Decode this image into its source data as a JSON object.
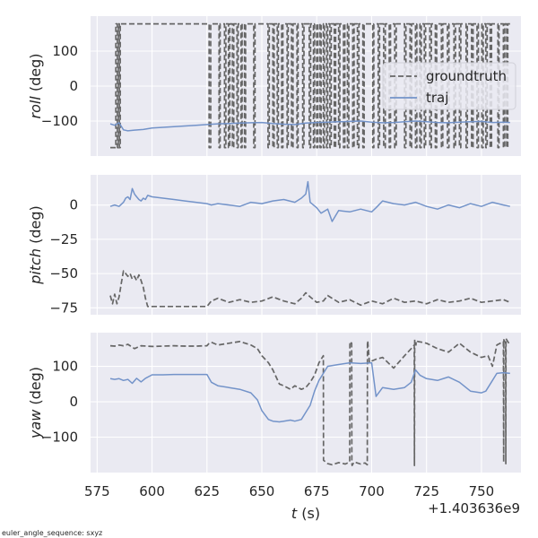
{
  "chart_data": {
    "type": "line",
    "colors": {
      "groundtruth": "#666666",
      "traj": "#7393c9",
      "panel_bg": "#eaeaf2",
      "grid": "#ffffff"
    },
    "shared_x": {
      "label_var": "t",
      "label_unit": "(s)",
      "offset_text": "+1.403636e9",
      "xlim": [
        572,
        768
      ],
      "ticks": [
        575,
        600,
        625,
        650,
        675,
        700,
        725,
        750
      ],
      "tick_labels": [
        "575",
        "600",
        "625",
        "650",
        "675",
        "700",
        "725",
        "750"
      ]
    },
    "legend": {
      "position": "right",
      "entries": [
        {
          "name": "groundtruth",
          "style": "dashed"
        },
        {
          "name": "traj",
          "style": "solid"
        }
      ]
    },
    "subplots": [
      {
        "id": "roll",
        "ylabel_var": "roll",
        "ylabel_unit": "(deg)",
        "ylim": [
          -200,
          200
        ],
        "yticks": [
          100,
          0,
          -100
        ],
        "ytick_labels": [
          "100",
          "0",
          "−100"
        ],
        "series": [
          {
            "name": "groundtruth",
            "mode": "wrap",
            "base": -176,
            "switch_times": [
              583.5,
              584.2,
              584.6,
              585.1,
              585.5,
              626.0,
              626.7,
              630.5,
              631.0,
              633.0,
              633.6,
              634.8,
              635.4,
              636.6,
              637.2,
              638.7,
              639.2,
              640.5,
              641.0,
              642.1,
              642.6,
              646.3,
              646.9,
              652.8,
              653.4,
              655.0,
              655.6,
              657.0,
              657.5,
              659.0,
              659.6,
              661.5,
              662.0,
              663.5,
              664.2,
              666.0,
              666.5,
              668.6,
              669.2,
              671.6,
              672.2,
              673.5,
              674.0,
              675.0,
              675.5,
              676.5,
              677.0,
              678.0,
              678.5,
              679.5,
              680.0,
              681.0,
              681.6,
              683.0,
              683.6,
              685.0,
              685.5,
              687.2,
              687.8,
              689.0,
              689.6,
              691.4,
              692.0,
              693.5,
              694.2,
              696.0,
              696.6,
              700.5,
              701.0,
              703.0,
              703.6,
              705.5,
              706.2,
              708.0,
              708.6,
              710.5,
              711.2,
              715.0,
              715.6,
              717.5,
              718.2,
              720.0,
              720.6,
              722.0,
              722.6,
              724.0,
              724.6,
              726.5,
              727.2,
              729.0,
              729.6,
              731.8,
              732.4,
              734.5,
              735.2,
              737.5,
              738.2,
              740.0,
              740.6,
              743.0,
              743.6,
              745.5,
              746.2,
              748.0,
              748.6,
              750.2,
              750.8,
              752.0,
              752.6,
              754.0,
              754.6,
              757.5,
              758.0,
              760.0,
              760.6,
              761.5,
              762.0
            ]
          },
          {
            "name": "traj",
            "x": [
              581,
              583,
              585,
              587,
              589,
              592,
              596,
              600,
              605,
              610,
              615,
              620,
              625,
              630,
              635,
              640,
              645,
              650,
              655,
              660,
              665,
              670,
              675,
              680,
              685,
              690,
              695,
              700,
              705,
              710,
              715,
              720,
              725,
              730,
              735,
              740,
              745,
              750,
              755,
              760,
              763
            ],
            "y": [
              -108,
              -112,
              -105,
              -125,
              -128,
              -126,
              -124,
              -120,
              -118,
              -116,
              -114,
              -112,
              -110,
              -108,
              -107,
              -106,
              -105,
              -104,
              -107,
              -109,
              -110,
              -106,
              -104,
              -103,
              -102,
              -101,
              -100,
              -103,
              -105,
              -104,
              -102,
              -100,
              -102,
              -104,
              -105,
              -103,
              -102,
              -101,
              -104,
              -103,
              -104
            ]
          }
        ]
      },
      {
        "id": "pitch",
        "ylabel_var": "pitch",
        "ylabel_unit": "(deg)",
        "ylim": [
          -80,
          22
        ],
        "yticks": [
          0,
          -25,
          -50,
          -75
        ],
        "ytick_labels": [
          "0",
          "−25",
          "−50",
          "−75"
        ],
        "series": [
          {
            "name": "groundtruth",
            "x": [
              581,
              582,
              583,
              584,
              585,
              586,
              587,
              588,
              589,
              590,
              591,
              592,
              593,
              594,
              595,
              596,
              597,
              598,
              599,
              600,
              605,
              610,
              615,
              620,
              625,
              627,
              630,
              635,
              640,
              645,
              650,
              655,
              660,
              665,
              668,
              670,
              672,
              675,
              678,
              680,
              685,
              690,
              695,
              700,
              705,
              710,
              715,
              720,
              725,
              730,
              735,
              740,
              745,
              750,
              755,
              760,
              763
            ],
            "y": [
              -66,
              -72,
              -65,
              -72,
              -67,
              -57,
              -48,
              -50,
              -52,
              -50,
              -54,
              -52,
              -55,
              -51,
              -55,
              -60,
              -68,
              -74,
              -74,
              -74,
              -74,
              -74,
              -74,
              -74,
              -74,
              -70,
              -68,
              -71,
              -69,
              -71,
              -70,
              -67,
              -70,
              -72,
              -68,
              -64,
              -67,
              -71,
              -70,
              -66,
              -71,
              -69,
              -73,
              -70,
              -72,
              -68,
              -71,
              -70,
              -72,
              -69,
              -71,
              -70,
              -68,
              -71,
              -70,
              -69,
              -71
            ]
          },
          {
            "name": "traj",
            "x": [
              581,
              583,
              585,
              587,
              588,
              589,
              590,
              591,
              592,
              593,
              594,
              595,
              596,
              597,
              598,
              600,
              605,
              610,
              615,
              620,
              625,
              627,
              630,
              635,
              640,
              645,
              650,
              655,
              660,
              665,
              668,
              670,
              671,
              672,
              675,
              677,
              680,
              682,
              685,
              690,
              695,
              700,
              702,
              705,
              710,
              715,
              720,
              725,
              730,
              735,
              740,
              745,
              750,
              755,
              760,
              763
            ],
            "y": [
              -1,
              0,
              -1,
              2,
              5,
              6,
              4,
              12,
              8,
              6,
              4,
              3,
              5,
              4,
              7,
              6,
              5,
              4,
              3,
              2,
              1,
              0,
              1,
              0,
              -1,
              2,
              1,
              3,
              4,
              2,
              5,
              8,
              17,
              2,
              -2,
              -6,
              -3,
              -12,
              -4,
              -5,
              -3,
              -5,
              -2,
              3,
              1,
              0,
              2,
              -1,
              -3,
              0,
              -2,
              1,
              -1,
              2,
              0,
              -1
            ]
          }
        ]
      },
      {
        "id": "yaw",
        "ylabel_var": "yaw",
        "ylabel_unit": "(deg)",
        "ylim": [
          -200,
          195
        ],
        "yticks": [
          100,
          0,
          -100
        ],
        "ytick_labels": [
          "100",
          "0",
          "−100"
        ],
        "series": [
          {
            "name": "groundtruth",
            "x": [
              581,
              583,
              585,
              587,
              589,
              592,
              595,
              600,
              605,
              610,
              615,
              620,
              625,
              626,
              627,
              630,
              635,
              640,
              645,
              648,
              650,
              653,
              655,
              658,
              660,
              663,
              665,
              668,
              670,
              672,
              674,
              676,
              678,
              678.1,
              679,
              680,
              682,
              685,
              688,
              690,
              690.1,
              690.2,
              690.9,
              691,
              691.1,
              692,
              693,
              695,
              697,
              698,
              698.1,
              698.2,
              699,
              700,
              702,
              705,
              710,
              715,
              718,
              719.4,
              719.5,
              719.6,
              720.1,
              720.2,
              720.3,
              721,
              723,
              725,
              730,
              735,
              740,
              745,
              750,
              753,
              755,
              757,
              760,
              760.1,
              760.2,
              761,
              761.1,
              761.2,
              762,
              763
            ],
            "y": [
              158,
              157,
              160,
              158,
              162,
              150,
              158,
              156,
              157,
              158,
              157,
              157,
              158,
              165,
              168,
              160,
              165,
              170,
              160,
              150,
              130,
              110,
              90,
              50,
              45,
              35,
              45,
              35,
              40,
              55,
              75,
              110,
              130,
              -165,
              -170,
              -175,
              -178,
              -172,
              -176,
              -170,
              160,
              170,
              165,
              -175,
              -180,
              -170,
              -172,
              -176,
              -173,
              -178,
              170,
              172,
              110,
              115,
              120,
              125,
              95,
              130,
              150,
              160,
              -180,
              175,
              170,
              160,
              172,
              170,
              168,
              165,
              150,
              140,
              165,
              140,
              125,
              130,
              100,
              160,
              170,
              -170,
              175,
              165,
              -175,
              178,
              170,
              160
            ]
          },
          {
            "name": "traj",
            "x": [
              581,
              583,
              585,
              587,
              589,
              591,
              593,
              595,
              597,
              600,
              605,
              610,
              615,
              620,
              625,
              627,
              630,
              635,
              640,
              645,
              648,
              650,
              653,
              655,
              658,
              660,
              663,
              665,
              668,
              670,
              672,
              674,
              676,
              678,
              680,
              685,
              690,
              695,
              700,
              702,
              705,
              710,
              715,
              718,
              720,
              722,
              725,
              730,
              735,
              740,
              745,
              750,
              752,
              755,
              757,
              760,
              763
            ],
            "y": [
              65,
              63,
              65,
              60,
              63,
              52,
              66,
              56,
              66,
              76,
              76,
              77,
              77,
              77,
              77,
              55,
              45,
              40,
              35,
              25,
              5,
              -25,
              -50,
              -55,
              -57,
              -55,
              -52,
              -55,
              -50,
              -30,
              -10,
              30,
              60,
              80,
              100,
              105,
              110,
              108,
              110,
              15,
              40,
              35,
              40,
              55,
              90,
              75,
              65,
              60,
              70,
              55,
              30,
              25,
              30,
              60,
              80,
              82,
              80
            ]
          }
        ]
      }
    ]
  },
  "footnote": "euler_angle_sequence: sxyz"
}
